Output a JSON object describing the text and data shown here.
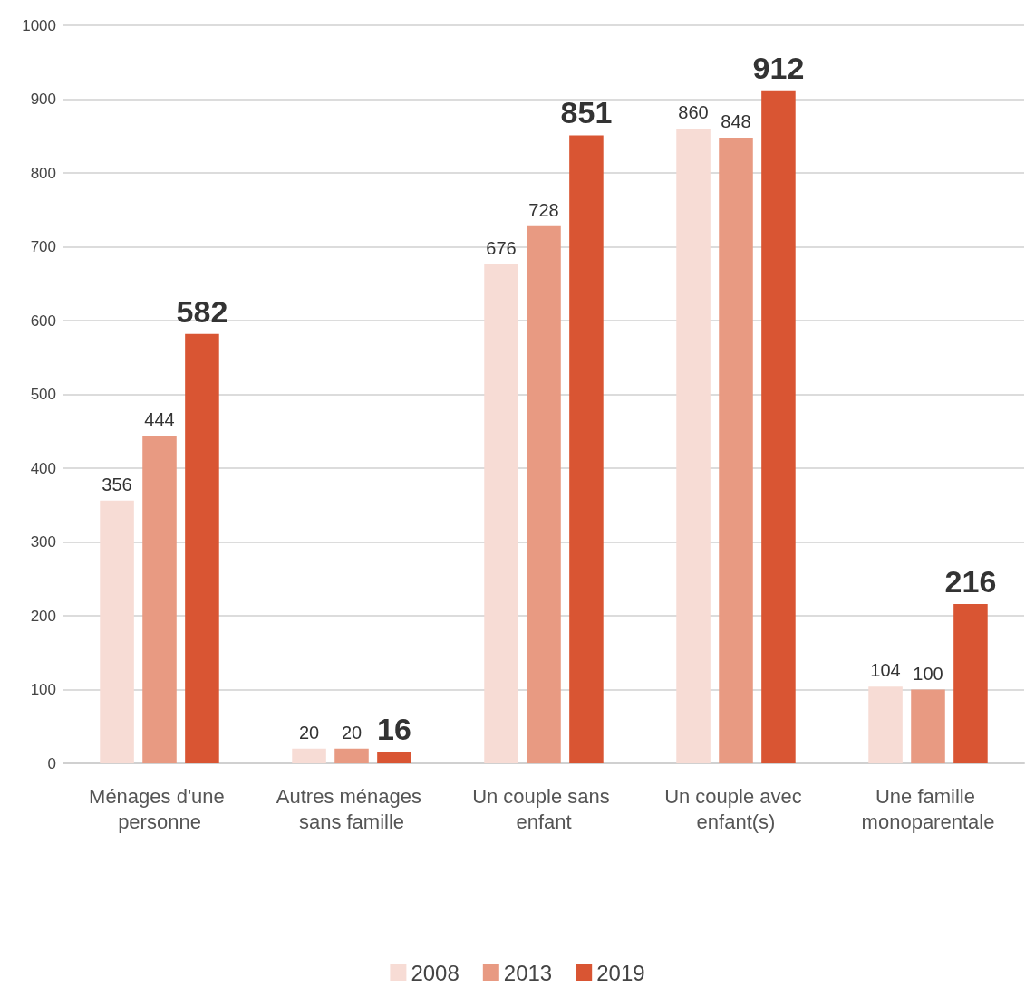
{
  "chart_data": {
    "type": "bar",
    "categories": [
      "Ménages d'une personne",
      "Autres ménages sans famille",
      "Un couple sans enfant",
      "Un couple avec enfant(s)",
      "Une famille monoparentale"
    ],
    "series": [
      {
        "name": "2008",
        "color": "#f7dcd5",
        "values": [
          356,
          20,
          676,
          860,
          104
        ]
      },
      {
        "name": "2013",
        "color": "#e89a82",
        "values": [
          444,
          20,
          728,
          848,
          100
        ]
      },
      {
        "name": "2019",
        "color": "#d95533",
        "values": [
          582,
          16,
          851,
          912,
          216
        ]
      }
    ],
    "ylim": [
      0,
      1000
    ],
    "yticks": [
      0,
      100,
      200,
      300,
      400,
      500,
      600,
      700,
      800,
      900,
      1000
    ],
    "grid": "y",
    "legend": "bottom",
    "data_labels": true
  }
}
